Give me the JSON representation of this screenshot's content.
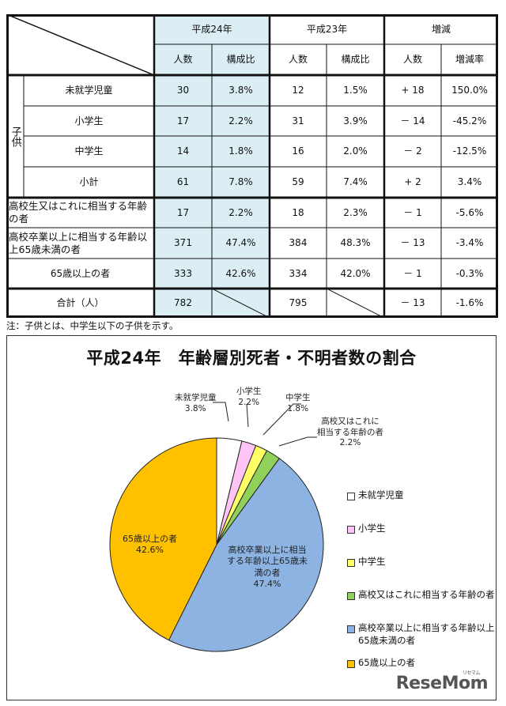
{
  "table": {
    "header": {
      "groups": [
        "平成24年",
        "平成23年",
        "増減"
      ],
      "subheaders": [
        "人数",
        "構成比",
        "人数",
        "構成比",
        "人数",
        "増減率"
      ]
    },
    "group_label": "子供",
    "rows": [
      {
        "label": "未就学児童",
        "h24_count": "30",
        "h24_ratio": "3.8%",
        "h23_count": "12",
        "h23_ratio": "1.5%",
        "diff_count": "+ 18",
        "diff_rate": "150.0%"
      },
      {
        "label": "小学生",
        "h24_count": "17",
        "h24_ratio": "2.2%",
        "h23_count": "31",
        "h23_ratio": "3.9%",
        "diff_count": "－ 14",
        "diff_rate": "-45.2%"
      },
      {
        "label": "中学生",
        "h24_count": "14",
        "h24_ratio": "1.8%",
        "h23_count": "16",
        "h23_ratio": "2.0%",
        "diff_count": "－ 2",
        "diff_rate": "-12.5%"
      },
      {
        "label": "小計",
        "h24_count": "61",
        "h24_ratio": "7.8%",
        "h23_count": "59",
        "h23_ratio": "7.4%",
        "diff_count": "+ 2",
        "diff_rate": "3.4%"
      },
      {
        "label": "高校生又はこれに相当する年齢の者",
        "h24_count": "17",
        "h24_ratio": "2.2%",
        "h23_count": "18",
        "h23_ratio": "2.3%",
        "diff_count": "－ 1",
        "diff_rate": "-5.6%"
      },
      {
        "label": "高校卒業以上に相当する年齢以上65歳未満の者",
        "h24_count": "371",
        "h24_ratio": "47.4%",
        "h23_count": "384",
        "h23_ratio": "48.3%",
        "diff_count": "－ 13",
        "diff_rate": "-3.4%"
      },
      {
        "label": "65歳以上の者",
        "h24_count": "333",
        "h24_ratio": "42.6%",
        "h23_count": "334",
        "h23_ratio": "42.0%",
        "diff_count": "－ 1",
        "diff_rate": "-0.3%"
      },
      {
        "label": "合計（人）",
        "h24_count": "782",
        "h24_ratio": "",
        "h23_count": "795",
        "h23_ratio": "",
        "diff_count": "－ 13",
        "diff_rate": "-1.6%"
      }
    ],
    "note": "注：子供とは、中学生以下の子供を示す。"
  },
  "chart_data": {
    "type": "pie",
    "title": "平成24年　年齢層別死者・不明者数の割合",
    "categories": [
      "未就学児童",
      "小学生",
      "中学生",
      "高校又はこれに相当する年齢の者",
      "高校卒業以上に相当する年齢以上65歳未満の者",
      "65歳以上の者"
    ],
    "values": [
      3.8,
      2.2,
      1.8,
      2.2,
      47.4,
      42.6
    ],
    "colors": [
      "#ffffff",
      "#ffc4f5",
      "#ffff66",
      "#8fd15a",
      "#8db3e2",
      "#ffc000"
    ],
    "data_labels": [
      {
        "name": "未就学児童",
        "value": "3.8%"
      },
      {
        "name": "小学生",
        "value": "2.2%"
      },
      {
        "name": "中学生",
        "value": "1.8%"
      },
      {
        "name": "高校又はこれに相当する年齢の者",
        "value": "2.2%"
      },
      {
        "name": "高校卒業以上に相当する年齢以上65歳未満の者",
        "value": "47.4%"
      },
      {
        "name": "65歳以上の者",
        "value": "42.6%"
      }
    ],
    "legend": [
      "未就学児童",
      "小学生",
      "中学生",
      "高校又はこれに相当する年齢の者",
      "高校卒業以上に相当する年齢以上65歳未満の者",
      "65歳以上の者"
    ],
    "legend_position": "right"
  },
  "labels": {
    "kindergarten": {
      "line1": "未就学児童",
      "value": "3.8%"
    },
    "elementary": {
      "line1": "小学生",
      "value": "2.2%"
    },
    "junior": {
      "line1": "中学生",
      "value": "1.8%"
    },
    "highschool": {
      "line1": "高校又はこれに",
      "line2": "相当する年齢の者",
      "value": "2.2%"
    },
    "adult": {
      "line1": "高校卒業以上に相当",
      "line2": "する年齢以上65歳未",
      "line3": "満の者",
      "value": "47.4%"
    },
    "elderly": {
      "line1": "65歳以上の者",
      "value": "42.6%"
    }
  },
  "legend_items": [
    {
      "label": "未就学児童",
      "color": "#ffffff"
    },
    {
      "label": "小学生",
      "color": "#ffc4f5"
    },
    {
      "label": "中学生",
      "color": "#ffff66"
    },
    {
      "label": "高校又はこれに相当する年齢の者",
      "color": "#8fd15a"
    },
    {
      "label": "高校卒業以上に相当する年齢以上",
      "label2": "65歳未満の者",
      "color": "#8db3e2"
    },
    {
      "label": "65歳以上の者",
      "color": "#ffc000"
    }
  ],
  "watermark": {
    "text": "ReseMom",
    "kana": "リセマム"
  }
}
